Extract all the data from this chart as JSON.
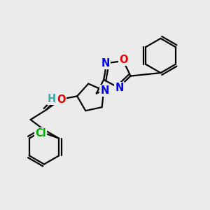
{
  "bg_color": "#ebebeb",
  "bond_color": "#000000",
  "bond_width": 1.6,
  "atom_colors": {
    "N": "#0000ee",
    "O": "#ee0000",
    "Cl": "#00aa00",
    "H": "#44aaaa",
    "C": "#000000"
  },
  "font_size": 10.5
}
